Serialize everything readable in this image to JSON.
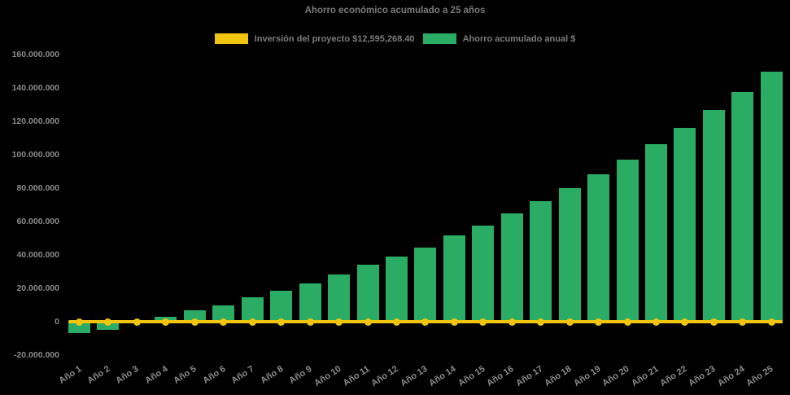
{
  "title": "Ahorro económico acumulado a 25 años",
  "legend": {
    "items": [
      {
        "label": "Inversión del proyecto $12,595,268.40",
        "swatch_color": "#F1C40F"
      },
      {
        "label": "Ahorro acumulado anual $",
        "swatch_color": "#2BAC64"
      }
    ]
  },
  "colors": {
    "background": "#000000",
    "bar_green": "#2BAC64",
    "line_yellow": "#F1C40F",
    "title_text": "#7B7B7B",
    "tick_text": "#8B8B8B"
  },
  "chart_data": {
    "type": "bar",
    "title": "Ahorro económico acumulado a 25 años",
    "xlabel": "",
    "ylabel": "",
    "grid": false,
    "legend_position": "top",
    "ylim": [
      -20000000,
      160000000
    ],
    "ytick_values": [
      160000000,
      140000000,
      120000000,
      100000000,
      80000000,
      60000000,
      40000000,
      20000000,
      0,
      -20000000
    ],
    "ytick_labels": [
      "160.000.000",
      "140.000.000",
      "120.000.000",
      "100.000.000",
      "80.000.000",
      "60.000.000",
      "40.000.000",
      "20.000.000",
      "0",
      "-20.000.000"
    ],
    "categories": [
      "Año 1",
      "Año 2",
      "Año 3",
      "Año 4",
      "Año 5",
      "Año 6",
      "Año 7",
      "Año 8",
      "Año 9",
      "Año 10",
      "Año 11",
      "Año 12",
      "Año 13",
      "Año 14",
      "Año 15",
      "Año 16",
      "Año 17",
      "Año 18",
      "Año 19",
      "Año 20",
      "Año 21",
      "Año 22",
      "Año 23",
      "Año 24",
      "Año 25"
    ],
    "series": [
      {
        "name": "Ahorro acumulado anual $",
        "type": "bar",
        "color": "#2BAC64",
        "values": [
          -7000000,
          -4800000,
          1000000,
          3000000,
          6600000,
          10000000,
          14500000,
          18700000,
          23000000,
          28400000,
          34000000,
          39000000,
          44500000,
          51500000,
          57500000,
          65000000,
          72300000,
          80000000,
          88200000,
          97000000,
          106300000,
          116000000,
          126800000,
          137400000,
          149600000
        ]
      },
      {
        "name": "Inversión del proyecto $12,595,268.40",
        "type": "line",
        "color": "#F1C40F",
        "constant_value": 0,
        "markers": true
      }
    ]
  }
}
